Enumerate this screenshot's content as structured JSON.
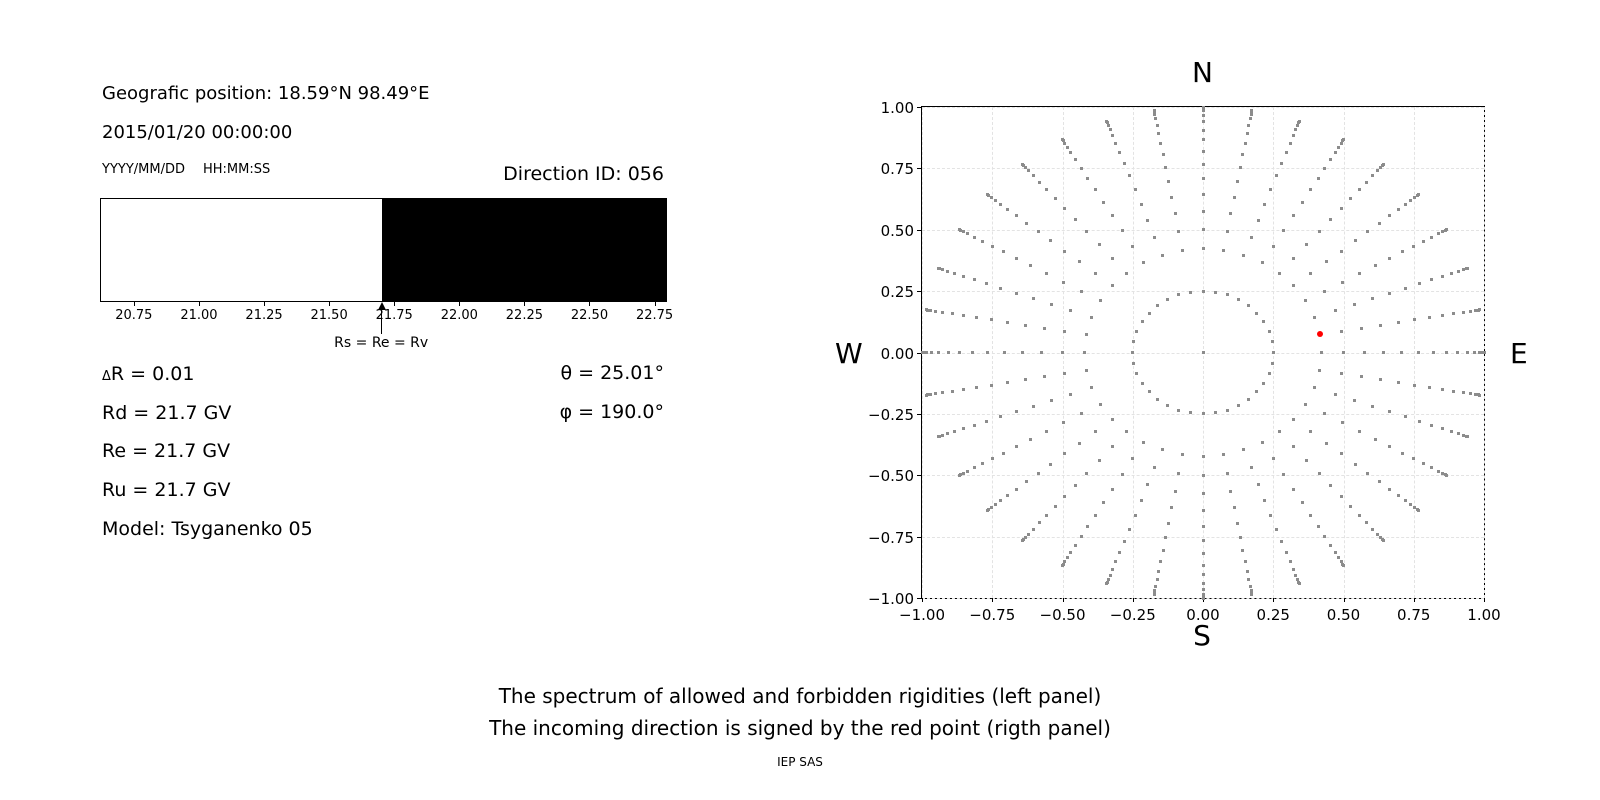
{
  "header": {
    "geo_position": "Geografic position: 18.59°N 98.49°E",
    "datetime": "2015/01/20 00:00:00",
    "date_format": "YYYY/MM/DD",
    "time_format": "HH:MM:SS",
    "direction_id": "Direction ID: 056"
  },
  "parameters": {
    "delta_symbol": "Δ",
    "delta_r_rest": "R = 0.01",
    "rd": "Rd = 21.7 GV",
    "re": "Re = 21.7 GV",
    "ru": "Ru = 21.7 GV",
    "model": "Model: Tsyganenko 05",
    "theta": "θ = 25.01°",
    "phi": "φ = 190.0°"
  },
  "captions": {
    "line1": "The spectrum of allowed and forbidden rigidities (left panel)",
    "line2": "The incoming direction is signed by the red point (rigth panel)",
    "credit": "IEP SAS"
  },
  "chart_data": [
    {
      "type": "area",
      "title": "Spectrum of allowed and forbidden rigidities",
      "x_min": 20.62,
      "x_max": 22.79,
      "x_ticks": [
        20.75,
        21.0,
        21.25,
        21.5,
        21.75,
        22.0,
        22.25,
        22.5,
        22.75
      ],
      "x_tick_labels": [
        "20.75",
        "21.00",
        "21.25",
        "21.50",
        "21.75",
        "22.00",
        "22.25",
        "22.50",
        "22.75"
      ],
      "boundary_rigidity": 21.7,
      "annotation": "Rs = Re = Rv",
      "allowed_region": {
        "range": [
          20.62,
          21.7
        ],
        "color": "#ffffff"
      },
      "forbidden_region": {
        "range": [
          21.7,
          22.79
        ],
        "color": "#000000"
      }
    },
    {
      "type": "scatter",
      "title": "Incoming direction map",
      "x_range": [
        -1,
        1
      ],
      "y_range": [
        -1,
        1
      ],
      "x_ticks": [
        -1.0,
        -0.75,
        -0.5,
        -0.25,
        0.0,
        0.25,
        0.5,
        0.75,
        1.0
      ],
      "x_tick_labels": [
        "−1.00",
        "−0.75",
        "−0.50",
        "−0.25",
        "0.00",
        "0.25",
        "0.50",
        "0.75",
        "1.00"
      ],
      "y_ticks": [
        1.0,
        0.75,
        0.5,
        0.25,
        0.0,
        -0.25,
        -0.5,
        -0.75,
        -1.0
      ],
      "y_tick_labels": [
        "1.00",
        "0.75",
        "0.50",
        "0.25",
        "0.00",
        "−0.25",
        "−0.50",
        "−0.75",
        "−1.00"
      ],
      "compass": {
        "north": "N",
        "south": "S",
        "west": "W",
        "east": "E"
      },
      "grid": true,
      "dot_color": "#8c8c8c",
      "azimuth_step_deg": 10,
      "ring_radii": [
        0.25,
        0.4226
      ],
      "ray_radii": [
        0.5,
        0.5736,
        0.6428,
        0.7071,
        0.766,
        0.8192,
        0.866,
        0.9063,
        0.9397,
        0.9659,
        0.9848,
        0.9962,
        1.0
      ],
      "center_dot": true,
      "red_point": {
        "azimuth_deg": 10,
        "radius": 0.4226,
        "x": 0.4162,
        "y": 0.0734,
        "color": "#ff0000"
      }
    }
  ]
}
